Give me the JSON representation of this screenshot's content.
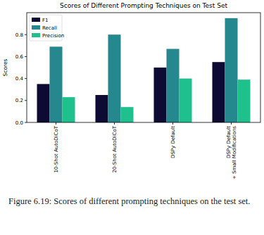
{
  "chart_data": {
    "type": "bar",
    "title": "Scores of Different Prompting Techniques on Test Set",
    "y_label": "Scores",
    "categories": [
      "10-Shot AutoDiCoT",
      "20-Shot AutoDiCoT",
      "DSPy Default",
      "DSPy Default\n+ Small Modifications"
    ],
    "series": [
      {
        "name": "F1",
        "color": "#0d0b33",
        "values": [
          0.35,
          0.25,
          0.5,
          0.55
        ]
      },
      {
        "name": "Recall",
        "color": "#24888e",
        "values": [
          0.69,
          0.8,
          0.67,
          0.95
        ]
      },
      {
        "name": "Precision",
        "color": "#1ec08c",
        "values": [
          0.23,
          0.14,
          0.4,
          0.39
        ]
      }
    ],
    "ylim": [
      0,
      1.0
    ],
    "yticks": [
      {
        "value": 0,
        "label": "0.0"
      },
      0.2,
      0.4,
      0.6,
      0.8
    ],
    "legend": "upper left",
    "grid": false
  },
  "caption": "Figure 6.19: Scores of different prompting techniques on the test set."
}
